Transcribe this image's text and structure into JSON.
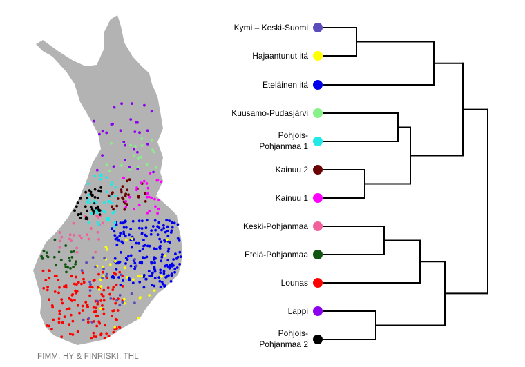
{
  "credit": "FIMM, HY & FINRISKI, THL",
  "colors": {
    "map_fill": "#b3b3b3",
    "dendrogram_line": "#000000"
  },
  "clusters": [
    {
      "id": "kymi",
      "label": "Kymi – Keski-Suomi",
      "color": "#5b4bbb"
    },
    {
      "id": "hajaantunut",
      "label": "Hajaantunut itä",
      "color": "#ffff00"
    },
    {
      "id": "etelainen",
      "label": "Eteläinen itä",
      "color": "#0000ee"
    },
    {
      "id": "kuusamo",
      "label": "Kuusamo-Pudasjärvi",
      "color": "#88f088"
    },
    {
      "id": "pohjois1",
      "label": [
        "Pohjois-",
        "Pohjanmaa 1"
      ],
      "color": "#22e8e8"
    },
    {
      "id": "kainuu2",
      "label": "Kainuu 2",
      "color": "#6b0000"
    },
    {
      "id": "kainuu1",
      "label": "Kainuu 1",
      "color": "#ff00ff"
    },
    {
      "id": "keski",
      "label": "Keski-Pohjanmaa",
      "color": "#f0609a"
    },
    {
      "id": "etela",
      "label": "Etelä-Pohjanmaa",
      "color": "#115511"
    },
    {
      "id": "lounas",
      "label": "Lounas",
      "color": "#ff0000"
    },
    {
      "id": "lappi",
      "label": "Lappi",
      "color": "#8b00ee"
    },
    {
      "id": "pohjois2",
      "label": [
        "Pohjois-",
        "Pohjanmaa 2"
      ],
      "color": "#000000"
    }
  ],
  "dendrogram": [
    {
      "a": "kymi",
      "b": "hajaantunut",
      "id": "n1"
    },
    {
      "a": "n1",
      "b": "etelainen",
      "id": "n2"
    },
    {
      "a": "kuusamo",
      "b": "pohjois1",
      "id": "n3"
    },
    {
      "a": "kainuu2",
      "b": "kainuu1",
      "id": "n4"
    },
    {
      "a": "n3",
      "b": "n4",
      "id": "n5"
    },
    {
      "a": "n2",
      "b": "n5",
      "id": "n6"
    },
    {
      "a": "keski",
      "b": "etela",
      "id": "n7"
    },
    {
      "a": "n7",
      "b": "lounas",
      "id": "n8"
    },
    {
      "a": "lappi",
      "b": "pohjois2",
      "id": "n9"
    },
    {
      "a": "n8",
      "b": "n9",
      "id": "n10"
    },
    {
      "a": "n6",
      "b": "n10",
      "id": "root"
    }
  ]
}
